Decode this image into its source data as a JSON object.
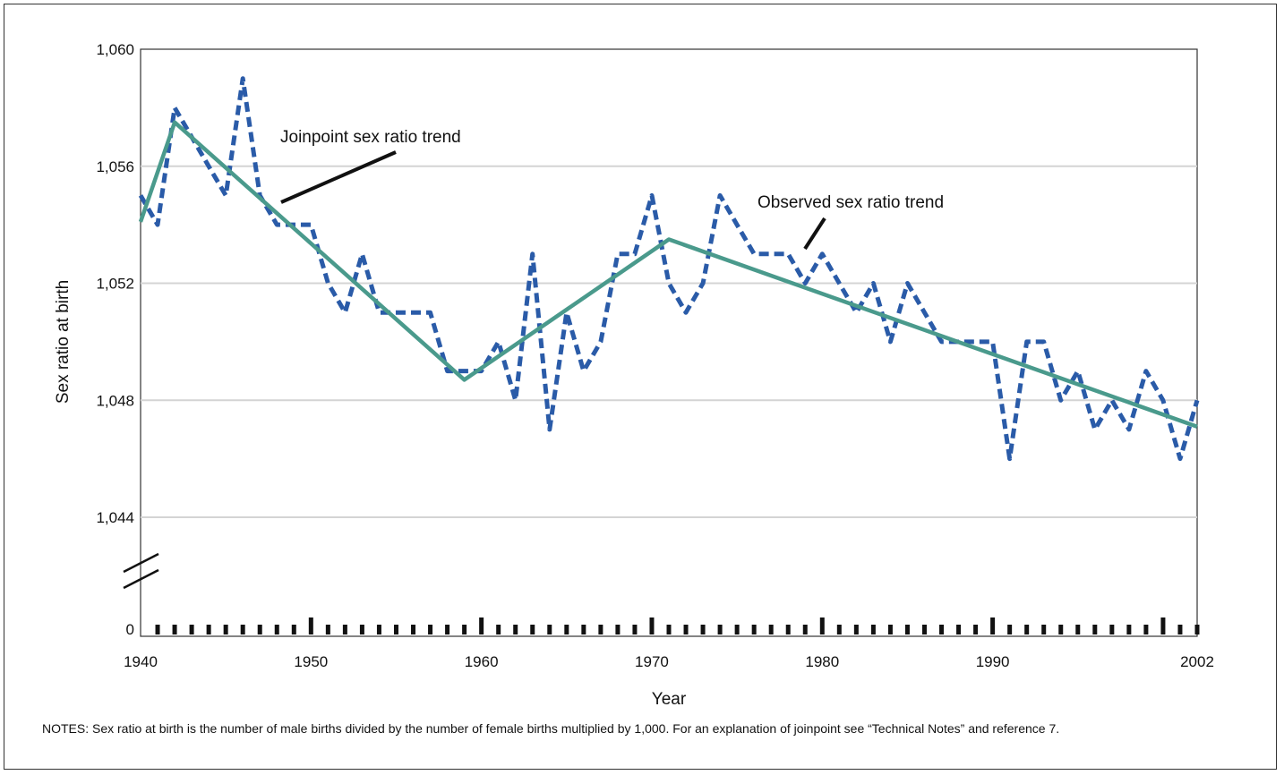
{
  "chart_data": {
    "type": "line",
    "xlabel": "Year",
    "ylabel": "Sex ratio at birth",
    "xlim": [
      1940,
      2002
    ],
    "ylim": [
      1044,
      1060
    ],
    "x_ticks": [
      1940,
      1950,
      1960,
      1970,
      1980,
      1990,
      2002
    ],
    "x_tick_labels": [
      "1940",
      "1950",
      "1960",
      "1970",
      "1980",
      "1990",
      "2002"
    ],
    "y_ticks": [
      1044,
      1048,
      1052,
      1056,
      1060
    ],
    "y_tick_labels": [
      "1,044",
      "1,048",
      "1,052",
      "1,056",
      "1,060"
    ],
    "y_zero_label": "0",
    "axis_break": true,
    "grid": "horizontal",
    "series": [
      {
        "name": "Observed sex ratio trend",
        "style": "dashed",
        "color": "#2a5ba8",
        "x": [
          1940,
          1941,
          1942,
          1943,
          1944,
          1945,
          1946,
          1947,
          1948,
          1949,
          1950,
          1951,
          1952,
          1953,
          1954,
          1955,
          1956,
          1957,
          1958,
          1959,
          1960,
          1961,
          1962,
          1963,
          1964,
          1965,
          1966,
          1967,
          1968,
          1969,
          1970,
          1971,
          1972,
          1973,
          1974,
          1975,
          1976,
          1977,
          1978,
          1979,
          1980,
          1981,
          1982,
          1983,
          1984,
          1985,
          1986,
          1987,
          1988,
          1989,
          1990,
          1991,
          1992,
          1993,
          1994,
          1995,
          1996,
          1997,
          1998,
          1999,
          2000,
          2001,
          2002
        ],
        "values": [
          1055,
          1054,
          1058,
          1057,
          1056,
          1055,
          1059,
          1055,
          1054,
          1054,
          1054,
          1052,
          1051,
          1053,
          1051,
          1051,
          1051,
          1051,
          1049,
          1049,
          1049,
          1050,
          1048,
          1053,
          1047,
          1051,
          1049,
          1050,
          1053,
          1053,
          1055,
          1052,
          1051,
          1052,
          1055,
          1054,
          1053,
          1053,
          1053,
          1052,
          1053,
          1052,
          1051,
          1052,
          1050,
          1052,
          1051,
          1050,
          1050,
          1050,
          1050,
          1046,
          1050,
          1050,
          1048,
          1049,
          1047,
          1048,
          1047,
          1049,
          1048,
          1046,
          1048
        ]
      },
      {
        "name": "Joinpoint sex ratio trend",
        "style": "solid",
        "color": "#4a9a8c",
        "x": [
          1940,
          1942,
          1959,
          1971,
          2002
        ],
        "values": [
          1054.1,
          1057.5,
          1048.7,
          1053.5,
          1047.1
        ]
      }
    ],
    "annotations": [
      {
        "text": "Joinpoint sex ratio trend",
        "target": "Joinpoint sex ratio trend"
      },
      {
        "text": "Observed sex ratio trend",
        "target": "Observed sex ratio trend"
      }
    ]
  },
  "notes": "NOTES: Sex ratio at birth is the number of male births divided by the number of female births multiplied by 1,000. For an explanation of joinpoint see “Technical Notes” and reference 7."
}
